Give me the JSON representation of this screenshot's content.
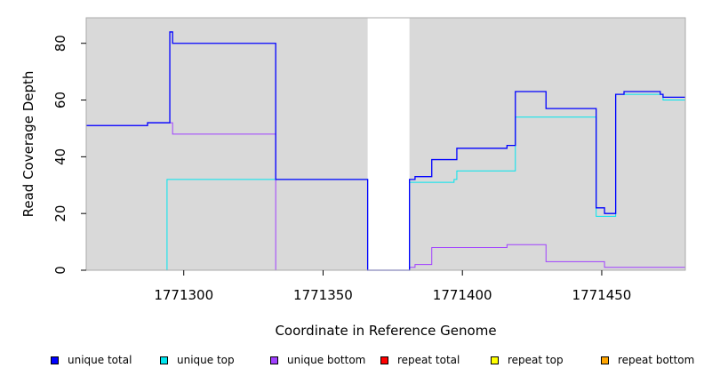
{
  "chart_data": {
    "type": "line",
    "xlabel": "Coordinate in Reference Genome",
    "ylabel": "Read Coverage Depth",
    "xlim": [
      1771265,
      1771480
    ],
    "ylim": [
      0,
      89
    ],
    "xticks": [
      1771300,
      1771350,
      1771400,
      1771450
    ],
    "yticks": [
      0,
      20,
      40,
      60,
      80
    ],
    "gap_region": [
      1771366,
      1771381
    ],
    "background_color": "#d9d9d9",
    "legend_placement": "bottom",
    "series": [
      {
        "name": "unique total",
        "color": "#0000ff",
        "step_x": [
          1771265,
          1771287,
          1771295,
          1771296,
          1771333,
          1771366,
          1771381,
          1771383,
          1771389,
          1771398,
          1771416,
          1771419,
          1771430,
          1771448,
          1771451,
          1771455,
          1771458,
          1771471,
          1771472,
          1771480
        ],
        "step_y": [
          51,
          52,
          84,
          80,
          32,
          0,
          32,
          33,
          39,
          43,
          44,
          63,
          57,
          22,
          20,
          62,
          63,
          62,
          61
        ]
      },
      {
        "name": "unique top",
        "color": "#00e5ee",
        "step_x": [
          1771265,
          1771294,
          1771333,
          1771366,
          1771381,
          1771397,
          1771398,
          1771419,
          1771448,
          1771455,
          1771458,
          1771472,
          1771480
        ],
        "step_y": [
          0,
          32,
          32,
          0,
          31,
          32,
          35,
          54,
          19,
          62,
          62,
          60
        ]
      },
      {
        "name": "unique bottom",
        "color": "#a040ff",
        "step_x": [
          1771265,
          1771287,
          1771295,
          1771296,
          1771333,
          1771381,
          1771383,
          1771389,
          1771416,
          1771430,
          1771451,
          1771480
        ],
        "step_y": [
          51,
          52,
          52,
          48,
          0,
          1,
          2,
          8,
          9,
          3,
          1
        ]
      },
      {
        "name": "repeat total",
        "color": "#ff0000",
        "step_x": [
          1771265,
          1771480
        ],
        "step_y": [
          0
        ]
      },
      {
        "name": "repeat top",
        "color": "#ffff00",
        "step_x": [
          1771265,
          1771480
        ],
        "step_y": [
          0
        ]
      },
      {
        "name": "repeat bottom",
        "color": "#ffa500",
        "step_x": [
          1771265,
          1771480
        ],
        "step_y": [
          0
        ]
      }
    ]
  }
}
